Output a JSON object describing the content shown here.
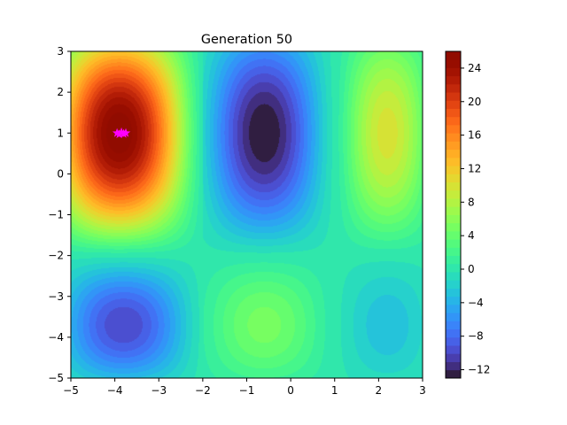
{
  "chart_data": {
    "type": "heatmap",
    "subtype": "filled-contour",
    "title": "Generation 50",
    "xlabel": "",
    "ylabel": "",
    "xlim": [
      -5,
      3
    ],
    "ylim": [
      -5,
      3
    ],
    "x_ticks": [
      "−5",
      "−4",
      "−3",
      "−2",
      "−1",
      "0",
      "1",
      "2",
      "3"
    ],
    "y_ticks": [
      "−5",
      "−4",
      "−3",
      "−2",
      "−1",
      "0",
      "1",
      "2",
      "3"
    ],
    "grid": false,
    "colormap": "turbo",
    "colorbar": {
      "range": [
        -13,
        26
      ],
      "levels": 40,
      "ticks": [
        "−12",
        "−8",
        "−4",
        "0",
        "4",
        "8",
        "12",
        "16",
        "20",
        "24"
      ]
    },
    "regions": {
      "x_breaks": [
        -2,
        1
      ],
      "y_breaks": [
        -2
      ]
    },
    "extrema": [
      {
        "x": -3.9,
        "y": 1.0,
        "value": 26
      },
      {
        "x": -0.6,
        "y": 1.0,
        "value": -13
      },
      {
        "x": 2.2,
        "y": 1.0,
        "value": 10
      },
      {
        "x": -3.8,
        "y": -3.7,
        "value": -10
      },
      {
        "x": -0.6,
        "y": -3.7,
        "value": 5
      },
      {
        "x": 2.2,
        "y": -3.7,
        "value": -3
      },
      {
        "x": 0,
        "y": 0,
        "value": 0
      }
    ],
    "population_marker": {
      "color": "#ff00ff",
      "shape": "star",
      "points": [
        {
          "x": -3.95,
          "y": 1.0
        },
        {
          "x": -3.85,
          "y": 1.02
        },
        {
          "x": -3.8,
          "y": 0.98
        },
        {
          "x": -3.75,
          "y": 1.0
        },
        {
          "x": -3.9,
          "y": 0.97
        }
      ]
    }
  }
}
